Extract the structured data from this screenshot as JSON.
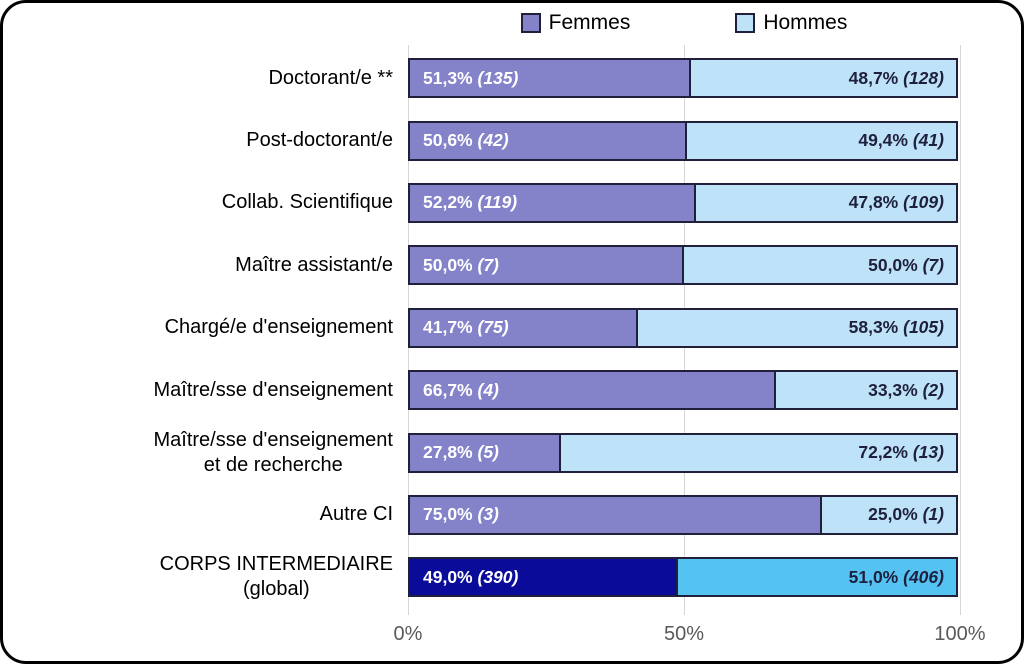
{
  "colors": {
    "femmes": "#8482C9",
    "hommes": "#BEE3F8",
    "femmes_global": "#0B0B99",
    "hommes_global": "#55C3F1",
    "bar_border": "#20203A",
    "gridline": "#D6D6D6",
    "axis_text": "#595959"
  },
  "legend": {
    "items": [
      {
        "label": "Femmes",
        "color": "#8482C9"
      },
      {
        "label": "Hommes",
        "color": "#BEE3F8"
      }
    ]
  },
  "chart_data": {
    "type": "bar",
    "orientation": "horizontal",
    "stacked": true,
    "units": "percent",
    "xlim": [
      0,
      100
    ],
    "x_tick_labels": [
      "0%",
      "50%",
      "100%"
    ],
    "x_tick_values": [
      0,
      50,
      100
    ],
    "legend_position": "top",
    "grid": "vertical-at-ticks",
    "categories": [
      "Doctorant/e **",
      "Post-doctorant/e",
      "Collab. Scientifique",
      "Maître assistant/e",
      "Chargé/e d'enseignement",
      "Maître/sse d'enseignement",
      "Maître/sse d'enseignement et de recherche",
      "Autre CI",
      "CORPS INTERMEDIAIRE (global)"
    ],
    "series": [
      {
        "name": "Femmes",
        "values": [
          51.3,
          50.6,
          52.2,
          50.0,
          41.7,
          66.7,
          27.8,
          75.0,
          49.0
        ],
        "counts": [
          135,
          42,
          119,
          7,
          75,
          4,
          5,
          3,
          390
        ]
      },
      {
        "name": "Hommes",
        "values": [
          48.7,
          49.4,
          47.8,
          50.0,
          58.3,
          33.3,
          72.2,
          25.0,
          51.0
        ],
        "counts": [
          128,
          41,
          109,
          7,
          105,
          2,
          13,
          1,
          406
        ]
      }
    ],
    "rows": [
      {
        "category": "Doctorant/e **",
        "femmes": {
          "pct": 51.3,
          "pct_label": "51,3%",
          "count_label": "(135)"
        },
        "hommes": {
          "pct": 48.7,
          "pct_label": "48,7%",
          "count_label": "(128)"
        }
      },
      {
        "category": "Post-doctorant/e",
        "femmes": {
          "pct": 50.6,
          "pct_label": "50,6%",
          "count_label": "(42)"
        },
        "hommes": {
          "pct": 49.4,
          "pct_label": "49,4%",
          "count_label": "(41)"
        }
      },
      {
        "category": "Collab. Scientifique",
        "femmes": {
          "pct": 52.2,
          "pct_label": "52,2%",
          "count_label": "(119)"
        },
        "hommes": {
          "pct": 47.8,
          "pct_label": "47,8%",
          "count_label": "(109)"
        }
      },
      {
        "category": "Maître assistant/e",
        "femmes": {
          "pct": 50.0,
          "pct_label": "50,0%",
          "count_label": "(7)"
        },
        "hommes": {
          "pct": 50.0,
          "pct_label": "50,0%",
          "count_label": "(7)"
        }
      },
      {
        "category": "Chargé/e d'enseignement",
        "femmes": {
          "pct": 41.7,
          "pct_label": "41,7%",
          "count_label": "(75)"
        },
        "hommes": {
          "pct": 58.3,
          "pct_label": "58,3%",
          "count_label": "(105)"
        }
      },
      {
        "category": "Maître/sse d'enseignement",
        "femmes": {
          "pct": 66.7,
          "pct_label": "66,7%",
          "count_label": "(4)"
        },
        "hommes": {
          "pct": 33.3,
          "pct_label": "33,3%",
          "count_label": "(2)"
        }
      },
      {
        "category": "Maître/sse d'enseignement\net de recherche",
        "femmes": {
          "pct": 27.8,
          "pct_label": "27,8%",
          "count_label": "(5)"
        },
        "hommes": {
          "pct": 72.2,
          "pct_label": "72,2%",
          "count_label": "(13)"
        }
      },
      {
        "category": "Autre CI",
        "femmes": {
          "pct": 75.0,
          "pct_label": "75,0%",
          "count_label": "(3)"
        },
        "hommes": {
          "pct": 25.0,
          "pct_label": "25,0%",
          "count_label": "(1)"
        }
      },
      {
        "category": "CORPS INTERMEDIAIRE\n(global)",
        "femmes": {
          "pct": 49.0,
          "pct_label": "49,0%",
          "count_label": "(390)",
          "color": "#0B0B99"
        },
        "hommes": {
          "pct": 51.0,
          "pct_label": "51,0%",
          "count_label": "(406)",
          "color": "#55C3F1"
        }
      }
    ]
  }
}
